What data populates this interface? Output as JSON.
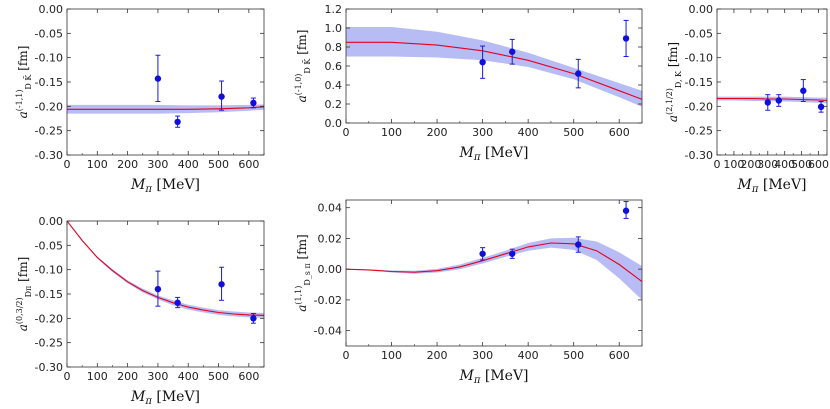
{
  "chart_data": [
    {
      "id": "p1",
      "type": "scatter",
      "xlabel": "M_π [MeV]",
      "ylabel": "a^{(-1,1)}_{D K̄} [fm]",
      "xlim": [
        0,
        650
      ],
      "ylim": [
        -0.3,
        0.0
      ],
      "xticks": [
        "0",
        "100",
        "200",
        "300",
        "400",
        "500",
        "600"
      ],
      "yticks": [
        "0.00",
        "-0.05",
        "-0.10",
        "-0.15",
        "-0.20",
        "-0.25",
        "-0.30"
      ],
      "points": [
        {
          "x": 300,
          "y": -0.143,
          "lo": -0.19,
          "hi": -0.095
        },
        {
          "x": 365,
          "y": -0.232,
          "lo": -0.243,
          "hi": -0.22
        },
        {
          "x": 510,
          "y": -0.18,
          "lo": -0.208,
          "hi": -0.148
        },
        {
          "x": 615,
          "y": -0.193,
          "lo": -0.203,
          "hi": -0.183
        }
      ],
      "fit": {
        "x": [
          0,
          100,
          200,
          300,
          400,
          500,
          600,
          650
        ],
        "y": [
          -0.206,
          -0.206,
          -0.206,
          -0.206,
          -0.206,
          -0.205,
          -0.203,
          -0.201
        ],
        "lo": [
          -0.215,
          -0.215,
          -0.215,
          -0.215,
          -0.214,
          -0.212,
          -0.209,
          -0.207
        ],
        "hi": [
          -0.197,
          -0.197,
          -0.197,
          -0.197,
          -0.198,
          -0.198,
          -0.197,
          -0.196
        ]
      }
    },
    {
      "id": "p2",
      "type": "scatter",
      "xlabel": "M_π [MeV]",
      "ylabel": "a^{(-1,0)}_{D K̄} [fm]",
      "xlim": [
        0,
        650
      ],
      "ylim": [
        0.0,
        1.2
      ],
      "xticks": [
        "0",
        "100",
        "200",
        "300",
        "400",
        "500",
        "600"
      ],
      "yticks": [
        "1.2",
        "1.0",
        "0.8",
        "0.6",
        "0.4",
        "0.2",
        "0.0"
      ],
      "points": [
        {
          "x": 300,
          "y": 0.64,
          "lo": 0.47,
          "hi": 0.81
        },
        {
          "x": 365,
          "y": 0.75,
          "lo": 0.62,
          "hi": 0.88
        },
        {
          "x": 510,
          "y": 0.52,
          "lo": 0.37,
          "hi": 0.67
        },
        {
          "x": 615,
          "y": 0.89,
          "lo": 0.7,
          "hi": 1.08
        }
      ],
      "fit": {
        "x": [
          0,
          100,
          200,
          300,
          400,
          500,
          600,
          650
        ],
        "y": [
          0.85,
          0.85,
          0.82,
          0.76,
          0.66,
          0.52,
          0.34,
          0.25
        ],
        "lo": [
          0.7,
          0.7,
          0.69,
          0.66,
          0.59,
          0.46,
          0.27,
          0.17
        ],
        "hi": [
          1.01,
          1.01,
          0.96,
          0.87,
          0.74,
          0.58,
          0.42,
          0.34
        ]
      }
    },
    {
      "id": "p3",
      "type": "scatter",
      "xlabel": "M_π [MeV]",
      "ylabel": "a^{(2,1/2)}_{D, K} [fm]",
      "xlim": [
        0,
        650
      ],
      "ylim": [
        -0.3,
        0.0
      ],
      "xticks": [
        "0",
        "100",
        "200",
        "300",
        "400",
        "500",
        "600"
      ],
      "yticks": [
        "0.00",
        "-0.05",
        "-0.10",
        "-0.15",
        "-0.20",
        "-0.25",
        "-0.30"
      ],
      "points": [
        {
          "x": 300,
          "y": -0.192,
          "lo": -0.208,
          "hi": -0.176
        },
        {
          "x": 365,
          "y": -0.188,
          "lo": -0.2,
          "hi": -0.176
        },
        {
          "x": 510,
          "y": -0.168,
          "lo": -0.19,
          "hi": -0.145
        },
        {
          "x": 615,
          "y": -0.201,
          "lo": -0.212,
          "hi": -0.19
        }
      ],
      "fit": {
        "x": [
          0,
          100,
          200,
          300,
          400,
          500,
          600,
          650
        ],
        "y": [
          -0.184,
          -0.184,
          -0.184,
          -0.185,
          -0.185,
          -0.186,
          -0.187,
          -0.188
        ],
        "lo": [
          -0.188,
          -0.188,
          -0.189,
          -0.189,
          -0.19,
          -0.191,
          -0.193,
          -0.194
        ],
        "hi": [
          -0.18,
          -0.18,
          -0.18,
          -0.18,
          -0.18,
          -0.181,
          -0.182,
          -0.182
        ]
      }
    },
    {
      "id": "p4",
      "type": "scatter",
      "xlabel": "M_π [MeV]",
      "ylabel": "a^{(0,3/2)}_{Dπ} [fm]",
      "xlim": [
        0,
        650
      ],
      "ylim": [
        -0.3,
        0.0
      ],
      "xticks": [
        "0",
        "100",
        "200",
        "300",
        "400",
        "500",
        "600"
      ],
      "yticks": [
        "0.00",
        "-0.05",
        "-0.10",
        "-0.15",
        "-0.20",
        "-0.25",
        "-0.30"
      ],
      "points": [
        {
          "x": 300,
          "y": -0.14,
          "lo": -0.175,
          "hi": -0.103
        },
        {
          "x": 365,
          "y": -0.168,
          "lo": -0.178,
          "hi": -0.157
        },
        {
          "x": 510,
          "y": -0.13,
          "lo": -0.163,
          "hi": -0.095
        },
        {
          "x": 615,
          "y": -0.2,
          "lo": -0.21,
          "hi": -0.19
        }
      ],
      "fit": {
        "x": [
          0,
          50,
          100,
          150,
          200,
          250,
          300,
          350,
          400,
          450,
          500,
          550,
          600,
          650
        ],
        "y": [
          0.0,
          -0.04,
          -0.075,
          -0.102,
          -0.125,
          -0.143,
          -0.157,
          -0.168,
          -0.177,
          -0.183,
          -0.188,
          -0.191,
          -0.193,
          -0.194
        ],
        "lo": [
          0.0,
          -0.041,
          -0.077,
          -0.105,
          -0.128,
          -0.147,
          -0.161,
          -0.173,
          -0.182,
          -0.188,
          -0.193,
          -0.196,
          -0.198,
          -0.199
        ],
        "hi": [
          0.0,
          -0.039,
          -0.073,
          -0.099,
          -0.122,
          -0.139,
          -0.153,
          -0.163,
          -0.172,
          -0.178,
          -0.183,
          -0.186,
          -0.188,
          -0.189
        ]
      }
    },
    {
      "id": "p5",
      "type": "scatter",
      "xlabel": "M_π [MeV]",
      "ylabel": "a^{(1,1)}_{D_s π} [fm]",
      "xlim": [
        0,
        650
      ],
      "ylim": [
        -0.05,
        0.045
      ],
      "xticks": [
        "0",
        "100",
        "200",
        "300",
        "400",
        "500",
        "600"
      ],
      "yticks": [
        "0.04",
        "0.02",
        "0.00",
        "-0.02",
        "-0.04"
      ],
      "points": [
        {
          "x": 300,
          "y": 0.01,
          "lo": 0.006,
          "hi": 0.014
        },
        {
          "x": 365,
          "y": 0.01,
          "lo": 0.007,
          "hi": 0.013
        },
        {
          "x": 510,
          "y": 0.016,
          "lo": 0.011,
          "hi": 0.021
        },
        {
          "x": 615,
          "y": 0.038,
          "lo": 0.033,
          "hi": 0.044
        }
      ],
      "fit": {
        "x": [
          0,
          50,
          100,
          150,
          200,
          250,
          300,
          350,
          400,
          450,
          500,
          550,
          600,
          650
        ],
        "y": [
          0.0,
          -0.0005,
          -0.0015,
          -0.002,
          -0.001,
          0.0015,
          0.0055,
          0.01,
          0.0145,
          0.017,
          0.0165,
          0.012,
          0.003,
          -0.008
        ],
        "lo": [
          0.0,
          -0.0008,
          -0.0022,
          -0.003,
          -0.0022,
          0.0,
          0.0037,
          0.008,
          0.012,
          0.014,
          0.0125,
          0.006,
          -0.006,
          -0.02
        ],
        "hi": [
          0.0,
          -0.0002,
          -0.0008,
          -0.001,
          0.0002,
          0.003,
          0.0073,
          0.012,
          0.017,
          0.02,
          0.0205,
          0.018,
          0.011,
          0.002
        ]
      }
    }
  ]
}
